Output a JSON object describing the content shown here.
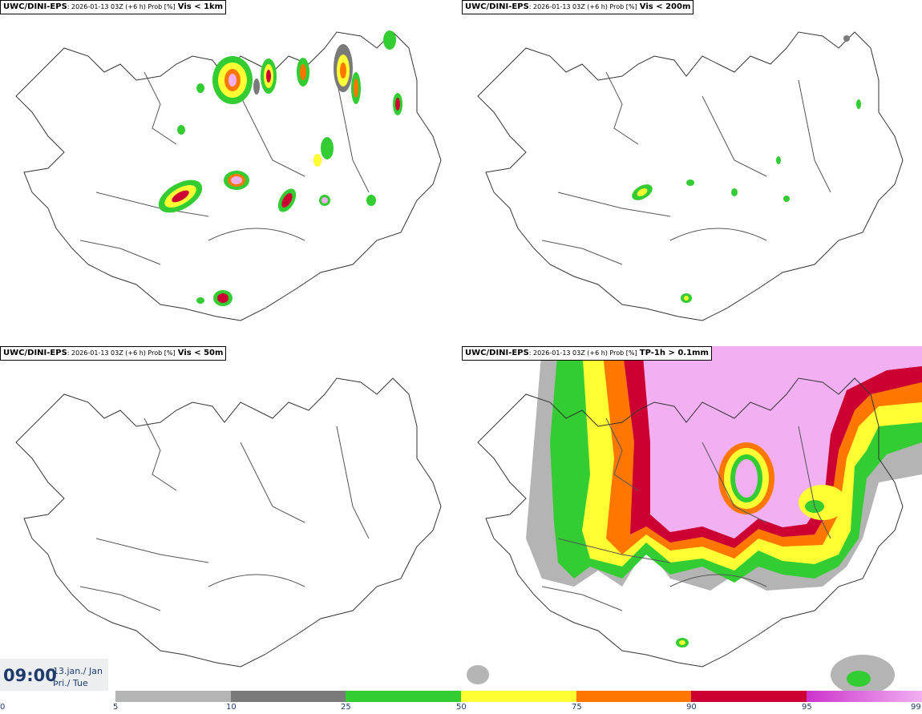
{
  "panels": [
    {
      "model": "UWC/DINI-EPS",
      "meta": ": 2026-01-13 03Z (+6 h) Prob [%]",
      "variable": "Vis < 1km"
    },
    {
      "model": "UWC/DINI-EPS",
      "meta": ": 2026-01-13 03Z (+6 h) Prob [%]",
      "variable": "Vis < 200m"
    },
    {
      "model": "UWC/DINI-EPS",
      "meta": ": 2026-01-13 03Z (+6 h) Prob [%]",
      "variable": "Vis < 50m"
    },
    {
      "model": "UWC/DINI-EPS",
      "meta": ": 2026-01-13 03Z (+6 h) Prob [%]",
      "variable": "TP-1h > 0.1mm"
    }
  ],
  "valid_time": {
    "clock": "09:00",
    "date_line1": "13.jan./ Jan",
    "date_line2": "Þri./ Tue"
  },
  "legend": {
    "ticks": [
      "0",
      "5",
      "10",
      "25",
      "50",
      "75",
      "90",
      "95",
      "99"
    ],
    "colors": [
      "#ffffff",
      "#b4b4b4",
      "#7a7a7a",
      "#33cc33",
      "#ffff33",
      "#ff7700",
      "#cc0033",
      "#cc33cc",
      "#f2b0f2"
    ]
  }
}
